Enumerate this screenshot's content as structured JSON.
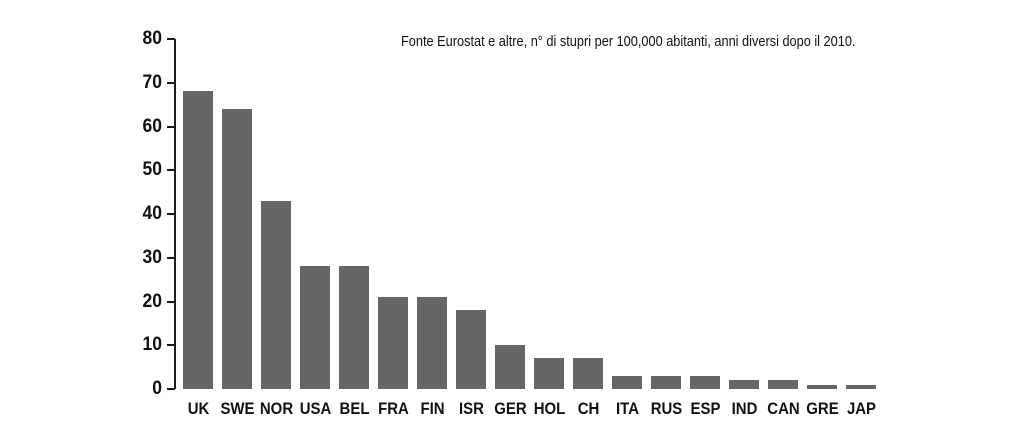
{
  "chart_data": {
    "type": "bar",
    "title": "Fonte Eurostat e altre, n° di stupri per 100,000 abitanti, anni diversi dopo il 2010.",
    "categories": [
      "UK",
      "SWE",
      "NOR",
      "USA",
      "BEL",
      "FRA",
      "FIN",
      "ISR",
      "GER",
      "HOL",
      "CH",
      "ITA",
      "RUS",
      "ESP",
      "IND",
      "CAN",
      "GRE",
      "JAP"
    ],
    "values": [
      68,
      64,
      43,
      28,
      28,
      21,
      21,
      18,
      10,
      7,
      7,
      3,
      3,
      3,
      2,
      2,
      1,
      1
    ],
    "xlabel": "",
    "ylabel": "",
    "ylim": [
      0,
      80
    ],
    "yticks": [
      0,
      10,
      20,
      30,
      40,
      50,
      60,
      70,
      80
    ],
    "grid": false,
    "legend": null,
    "bar_color": "#666666",
    "axis_color": "#1c1c1c",
    "text_color": "#111111",
    "background_color": "#ffffff"
  }
}
